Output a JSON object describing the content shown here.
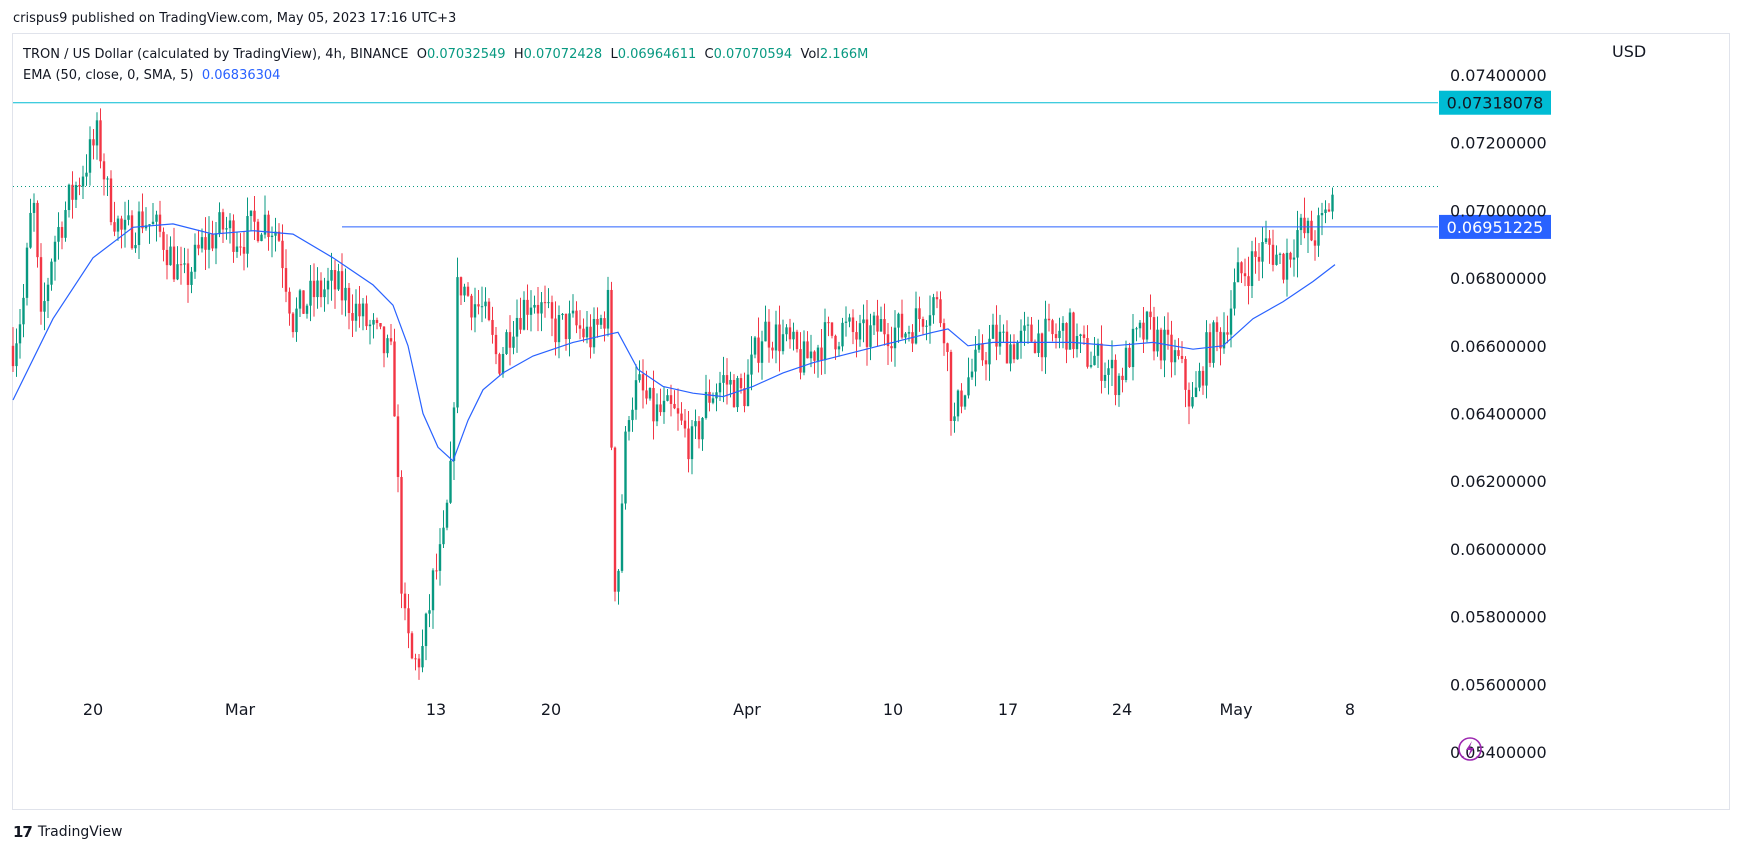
{
  "publisher": "crispus9 published on TradingView.com, May 05, 2023 17:16 UTC+3",
  "legend": {
    "symbol": "TRON / US Dollar (calculated by TradingView), 4h, BINANCE",
    "open_label": "O",
    "open": "0.07032549",
    "high_label": "H",
    "high": "0.07072428",
    "low_label": "L",
    "low": "0.06964611",
    "close_label": "C",
    "close": "0.07070594",
    "vol_label": "Vol",
    "vol": "2.166M",
    "ema_label": "EMA (50, close, 0, SMA, 5)",
    "ema_value": "0.06836304"
  },
  "currency": "USD",
  "footer": {
    "logo_mark": "17",
    "brand": "TradingView"
  },
  "colors": {
    "up": "#089981",
    "down": "#f23645",
    "ema": "#2962ff",
    "resistance": "#00bcd4",
    "support_label": "#2962ff",
    "bolt": "#9c27b0"
  },
  "chart_data": {
    "type": "candlestick",
    "y_axis": {
      "ticks": [
        "0.07400000",
        "0.07200000",
        "0.07000000",
        "0.06800000",
        "0.06600000",
        "0.06400000",
        "0.06200000",
        "0.06000000",
        "0.05800000",
        "0.05600000",
        "0.05400000"
      ],
      "range": [
        0.0535,
        0.0755
      ]
    },
    "x_axis": {
      "ticks": [
        "20",
        "Mar",
        "13",
        "20",
        "Apr",
        "10",
        "17",
        "24",
        "May",
        "8"
      ]
    },
    "horizontal_lines": [
      {
        "value": 0.07318078,
        "label": "0.07318078",
        "style": "solid",
        "color": "#00bcd4"
      },
      {
        "value": 0.06951225,
        "label": "0.06951225",
        "style": "solid",
        "color": "#2962ff"
      },
      {
        "value": 0.07070594,
        "label": "",
        "style": "dotted",
        "color": "#089981"
      }
    ],
    "price_path": [
      [
        0,
        0.066
      ],
      [
        10,
        0.0672
      ],
      [
        20,
        0.0705
      ],
      [
        28,
        0.0665
      ],
      [
        40,
        0.069
      ],
      [
        55,
        0.0702
      ],
      [
        70,
        0.0712
      ],
      [
        85,
        0.0722
      ],
      [
        95,
        0.0704
      ],
      [
        110,
        0.0692
      ],
      [
        130,
        0.0698
      ],
      [
        150,
        0.0692
      ],
      [
        170,
        0.0678
      ],
      [
        190,
        0.069
      ],
      [
        210,
        0.0695
      ],
      [
        230,
        0.0692
      ],
      [
        250,
        0.0698
      ],
      [
        265,
        0.0694
      ],
      [
        280,
        0.0668
      ],
      [
        300,
        0.0675
      ],
      [
        320,
        0.0678
      ],
      [
        340,
        0.0672
      ],
      [
        360,
        0.0664
      ],
      [
        380,
        0.0655
      ],
      [
        390,
        0.058
      ],
      [
        400,
        0.0565
      ],
      [
        410,
        0.057
      ],
      [
        420,
        0.059
      ],
      [
        430,
        0.06
      ],
      [
        438,
        0.0622
      ],
      [
        445,
        0.068
      ],
      [
        455,
        0.0675
      ],
      [
        470,
        0.067
      ],
      [
        485,
        0.0655
      ],
      [
        500,
        0.0668
      ],
      [
        520,
        0.0675
      ],
      [
        540,
        0.0665
      ],
      [
        560,
        0.0666
      ],
      [
        580,
        0.0662
      ],
      [
        595,
        0.0672
      ],
      [
        603,
        0.058
      ],
      [
        608,
        0.061
      ],
      [
        615,
        0.0642
      ],
      [
        625,
        0.0648
      ],
      [
        640,
        0.064
      ],
      [
        660,
        0.064
      ],
      [
        680,
        0.063
      ],
      [
        695,
        0.0645
      ],
      [
        710,
        0.065
      ],
      [
        730,
        0.0645
      ],
      [
        750,
        0.0665
      ],
      [
        770,
        0.0662
      ],
      [
        790,
        0.0655
      ],
      [
        810,
        0.0662
      ],
      [
        830,
        0.0665
      ],
      [
        850,
        0.0662
      ],
      [
        870,
        0.0666
      ],
      [
        890,
        0.0664
      ],
      [
        905,
        0.0668
      ],
      [
        920,
        0.0674
      ],
      [
        932,
        0.0666
      ],
      [
        940,
        0.0635
      ],
      [
        950,
        0.0648
      ],
      [
        965,
        0.0655
      ],
      [
        980,
        0.0662
      ],
      [
        1000,
        0.066
      ],
      [
        1020,
        0.0663
      ],
      [
        1040,
        0.0662
      ],
      [
        1055,
        0.0665
      ],
      [
        1070,
        0.0658
      ],
      [
        1090,
        0.0655
      ],
      [
        1105,
        0.065
      ],
      [
        1120,
        0.066
      ],
      [
        1135,
        0.0665
      ],
      [
        1150,
        0.066
      ],
      [
        1165,
        0.0655
      ],
      [
        1180,
        0.0642
      ],
      [
        1195,
        0.066
      ],
      [
        1210,
        0.0664
      ],
      [
        1225,
        0.068
      ],
      [
        1240,
        0.0685
      ],
      [
        1255,
        0.069
      ],
      [
        1270,
        0.0684
      ],
      [
        1285,
        0.0694
      ],
      [
        1300,
        0.0692
      ],
      [
        1310,
        0.0696
      ],
      [
        1322,
        0.0707
      ]
    ],
    "ema_path": [
      [
        0,
        0.0644
      ],
      [
        40,
        0.0668
      ],
      [
        80,
        0.0686
      ],
      [
        120,
        0.0695
      ],
      [
        160,
        0.0696
      ],
      [
        200,
        0.0693
      ],
      [
        240,
        0.0694
      ],
      [
        280,
        0.0693
      ],
      [
        320,
        0.0686
      ],
      [
        360,
        0.0678
      ],
      [
        380,
        0.0672
      ],
      [
        395,
        0.066
      ],
      [
        410,
        0.064
      ],
      [
        425,
        0.063
      ],
      [
        440,
        0.0626
      ],
      [
        455,
        0.0638
      ],
      [
        470,
        0.0647
      ],
      [
        490,
        0.0652
      ],
      [
        520,
        0.0657
      ],
      [
        560,
        0.0661
      ],
      [
        590,
        0.0663
      ],
      [
        605,
        0.0664
      ],
      [
        625,
        0.0653
      ],
      [
        650,
        0.0648
      ],
      [
        680,
        0.0646
      ],
      [
        710,
        0.0645
      ],
      [
        740,
        0.0648
      ],
      [
        770,
        0.0652
      ],
      [
        800,
        0.0655
      ],
      [
        840,
        0.0658
      ],
      [
        880,
        0.0661
      ],
      [
        920,
        0.0664
      ],
      [
        935,
        0.0665
      ],
      [
        955,
        0.066
      ],
      [
        980,
        0.0661
      ],
      [
        1020,
        0.0661
      ],
      [
        1060,
        0.0661
      ],
      [
        1100,
        0.066
      ],
      [
        1140,
        0.0661
      ],
      [
        1180,
        0.0659
      ],
      [
        1210,
        0.066
      ],
      [
        1240,
        0.0668
      ],
      [
        1270,
        0.0673
      ],
      [
        1300,
        0.0679
      ],
      [
        1322,
        0.0684
      ]
    ]
  }
}
